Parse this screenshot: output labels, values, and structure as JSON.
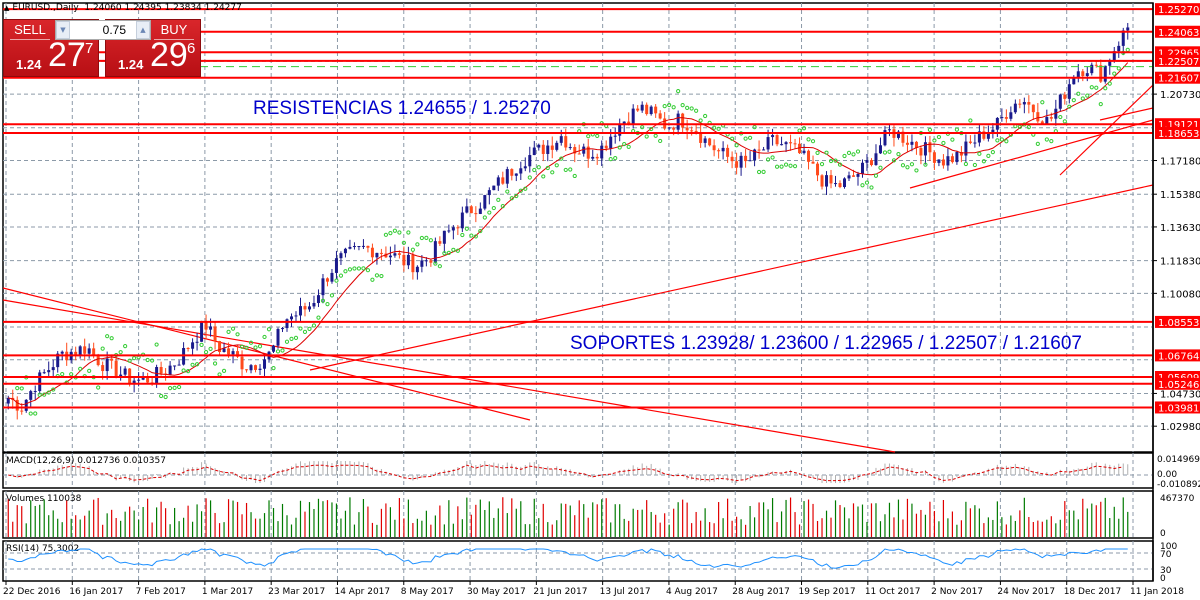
{
  "window": {
    "symbol": "EURUSD.",
    "timeframe": "Daily",
    "ohlc": "1.24060 1.24395 1.23834 1.24277"
  },
  "trade_panel": {
    "sell_label": "SELL",
    "buy_label": "BUY",
    "lot_value": "0.75",
    "sell_price_prefix": "1.24",
    "sell_price_big": "27",
    "sell_price_sup": "7",
    "buy_price_prefix": "1.24",
    "buy_price_big": "29",
    "buy_price_sup": "6"
  },
  "colors": {
    "bull_candle": "#1a1a8c",
    "bear_candle": "#ff4a1c",
    "level_line": "#ff0000",
    "price_tag_bg": "#ff0000",
    "grid": "#8c9aa8",
    "sar_dots": "#33cc33",
    "ma_line": "#dd0000",
    "annotation_text": "#0000cc",
    "volume_up": "#007a00",
    "volume_down": "#e00000",
    "rsi_line": "#1e90ff",
    "macd_signal": "#dd0000",
    "macd_hist": "#b0b0b0"
  },
  "chart_data": {
    "type": "candlestick",
    "title": "EURUSD., Daily",
    "instrument": "EURUSD",
    "annotations": {
      "resistances": "RESISTENCIAS 1.24655  /   1.25270",
      "supports": "SOPORTES 1.23928/ 1.23600 / 1.22965 / 1.22507 / 1.21607"
    },
    "price_axis": {
      "ticks": [
        "1.20730",
        "1.17180",
        "1.15380",
        "1.13630",
        "1.11830",
        "1.10080",
        "1.04730",
        "1.02980"
      ],
      "ylim": [
        1.0298,
        1.2527
      ]
    },
    "horizontal_levels": [
      "1.25270",
      "1.24063",
      "1.22965",
      "1.22507",
      "1.21607",
      "1.19121",
      "1.18653",
      "1.08553",
      "1.06764",
      "1.05609",
      "1.05246",
      "1.03981"
    ],
    "dashed_level": "1.22200",
    "x_axis_labels": [
      "22 Dec 2016",
      "16 Jan 2017",
      "7 Feb 2017",
      "1 Mar 2017",
      "23 Mar 2017",
      "14 Apr 2017",
      "8 May 2017",
      "30 May 2017",
      "21 Jun 2017",
      "13 Jul 2017",
      "4 Aug 2017",
      "28 Aug 2017",
      "19 Sep 2017",
      "11 Oct 2017",
      "2 Nov 2017",
      "24 Nov 2017",
      "18 Dec 2017",
      "11 Jan 2018"
    ],
    "close_path": [
      1.045,
      1.04,
      1.052,
      1.06,
      1.068,
      1.07,
      1.072,
      1.064,
      1.06,
      1.056,
      1.054,
      1.056,
      1.06,
      1.066,
      1.076,
      1.084,
      1.072,
      1.068,
      1.062,
      1.064,
      1.069,
      1.087,
      1.09,
      1.095,
      1.108,
      1.118,
      1.122,
      1.125,
      1.124,
      1.122,
      1.118,
      1.116,
      1.12,
      1.13,
      1.138,
      1.145,
      1.15,
      1.158,
      1.165,
      1.172,
      1.176,
      1.18,
      1.185,
      1.178,
      1.176,
      1.178,
      1.188,
      1.195,
      1.2,
      1.196,
      1.19,
      1.194,
      1.19,
      1.182,
      1.176,
      1.172,
      1.17,
      1.176,
      1.182,
      1.18,
      1.176,
      1.168,
      1.16,
      1.158,
      1.162,
      1.168,
      1.178,
      1.188,
      1.184,
      1.18,
      1.176,
      1.172,
      1.174,
      1.18,
      1.186,
      1.19,
      1.2,
      1.205,
      1.198,
      1.192,
      1.205,
      1.22,
      1.222,
      1.218,
      1.232,
      1.243
    ],
    "indicators": [
      {
        "name": "MACD(12,26,9)",
        "values": [
          "0.012736",
          "0.010357"
        ],
        "axis_ticks": [
          "0.014969",
          "0.00",
          "-0.010892"
        ]
      },
      {
        "name": "Volumes",
        "values": [
          "110038"
        ],
        "axis_ticks": [
          "467370",
          "0"
        ]
      },
      {
        "name": "RSI(14)",
        "values": [
          "75.3002"
        ],
        "axis_ticks": [
          "100",
          "70",
          "30",
          "0"
        ]
      }
    ]
  }
}
